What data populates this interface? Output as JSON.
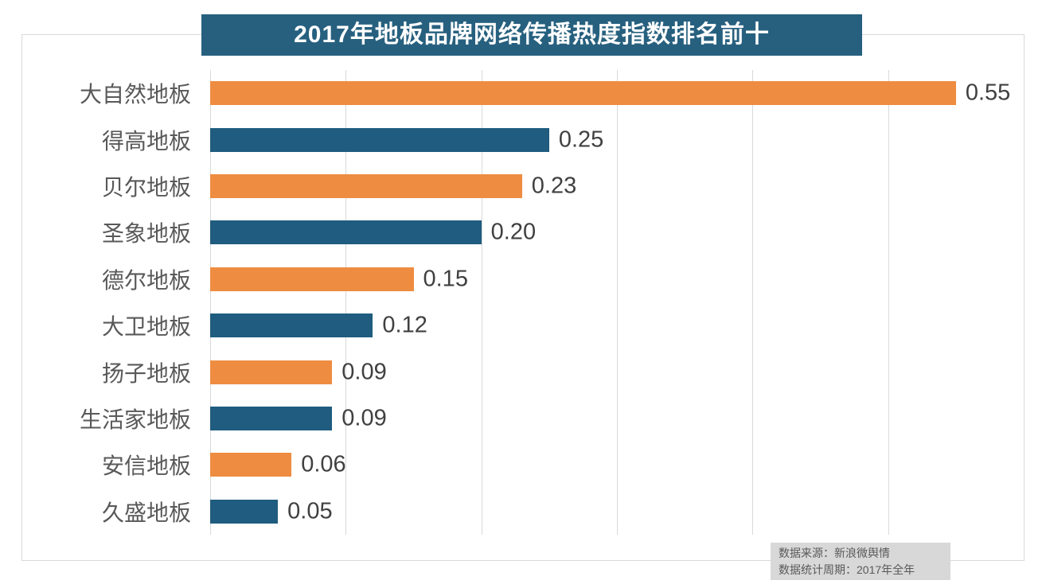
{
  "chart_data": {
    "type": "bar",
    "orientation": "horizontal",
    "title": "2017年地板品牌网络传播热度指数排名前十",
    "categories": [
      "大自然地板",
      "得高地板",
      "贝尔地板",
      "圣象地板",
      "德尔地板",
      "大卫地板",
      "扬子地板",
      "生活家地板",
      "安信地板",
      "久盛地板"
    ],
    "values": [
      0.55,
      0.25,
      0.23,
      0.2,
      0.15,
      0.12,
      0.09,
      0.09,
      0.06,
      0.05
    ],
    "value_labels": [
      "0.55",
      "0.25",
      "0.23",
      "0.20",
      "0.15",
      "0.12",
      "0.09",
      "0.09",
      "0.06",
      "0.05"
    ],
    "xlim": [
      0,
      0.6
    ],
    "gridline_interval": 0.1,
    "grid": "vertical-gridlines-on",
    "legend": "none",
    "bar_colors_alternating": [
      "#ee8c41",
      "#1f5c7f"
    ],
    "title_banner_color": "#27607f",
    "title_text_color": "#ffffff",
    "gridline_color": "#d9d9d9",
    "category_label_color": "#595959",
    "value_label_color": "#404040"
  },
  "footer": {
    "source": "数据来源：新浪微舆情",
    "period": "数据统计周期：2017年全年"
  }
}
